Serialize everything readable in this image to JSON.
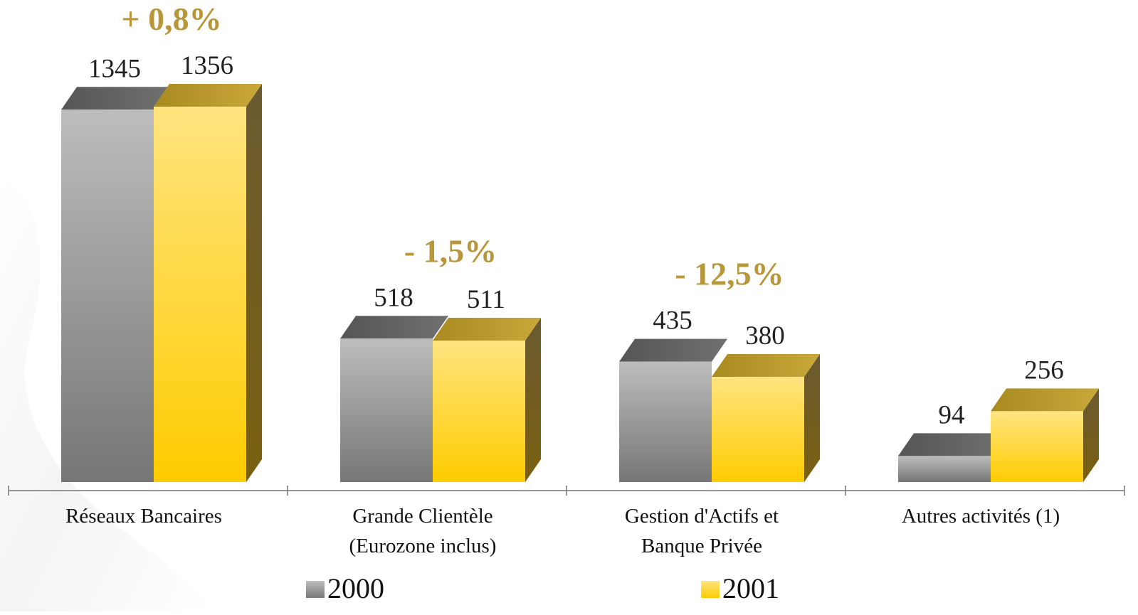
{
  "chart_data": {
    "type": "bar",
    "categories": [
      [
        "Réseaux Bancaires"
      ],
      [
        "Grande Clientèle",
        "(Eurozone inclus)"
      ],
      [
        "Gestion d'Actifs et",
        "Banque Privée"
      ],
      [
        "Autres activités (1)"
      ]
    ],
    "series": [
      {
        "name": "2000",
        "values": [
          1345,
          518,
          435,
          94
        ],
        "labels": [
          "1345",
          "518",
          "435",
          "94"
        ]
      },
      {
        "name": "2001",
        "values": [
          1356,
          511,
          380,
          256
        ],
        "labels": [
          "1356",
          "511",
          "380",
          "256"
        ]
      }
    ],
    "changes": [
      "+ 0,8%",
      "- 1,5%",
      "- 12,5%",
      ""
    ],
    "ylim": [
      0,
      1356
    ],
    "grid": false,
    "legend_placement": "bottom",
    "colors": {
      "series_2000": "#9a9a9a",
      "series_2001": "#ffd23a",
      "change_label": "#b8963a"
    }
  }
}
